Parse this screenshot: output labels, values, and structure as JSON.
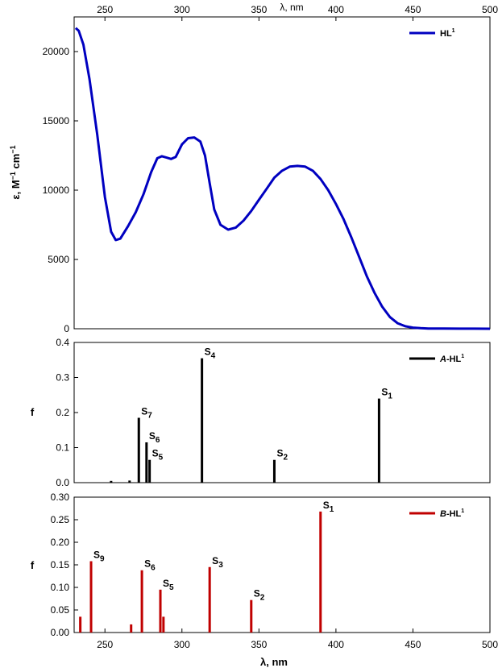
{
  "chart_data": [
    {
      "type": "line",
      "xlabel": "λ, nm",
      "ylabel_parts": [
        "ε, M",
        "−1",
        " cm",
        "−1"
      ],
      "x_range": [
        230,
        500
      ],
      "ylim": [
        0,
        22500
      ],
      "yticks": [
        0,
        5000,
        10000,
        15000,
        20000
      ],
      "xticks": [
        250,
        300,
        350,
        400,
        450,
        500
      ],
      "legend": {
        "base": "HL",
        "sup": "1",
        "position": "top-right"
      },
      "series": [
        {
          "name": "HL¹",
          "color": "#0000c0",
          "x": [
            231,
            233,
            236,
            240,
            245,
            250,
            254,
            257,
            260,
            265,
            270,
            275,
            280,
            284,
            287,
            290,
            293,
            296,
            300,
            304,
            308,
            312,
            315,
            318,
            321,
            325,
            330,
            335,
            340,
            345,
            350,
            355,
            360,
            365,
            370,
            375,
            380,
            385,
            390,
            395,
            400,
            405,
            410,
            415,
            420,
            425,
            430,
            435,
            440,
            445,
            450,
            455,
            460,
            470,
            480,
            490,
            500
          ],
          "y": [
            21700,
            21500,
            20500,
            18000,
            14000,
            9500,
            7000,
            6400,
            6500,
            7400,
            8400,
            9700,
            11300,
            12300,
            12450,
            12350,
            12250,
            12400,
            13300,
            13750,
            13800,
            13500,
            12500,
            10500,
            8600,
            7500,
            7150,
            7300,
            7800,
            8500,
            9300,
            10100,
            10900,
            11400,
            11700,
            11750,
            11700,
            11400,
            10800,
            10000,
            9000,
            7900,
            6600,
            5200,
            3800,
            2600,
            1600,
            850,
            400,
            180,
            80,
            40,
            20,
            10,
            5,
            3,
            2
          ]
        }
      ]
    },
    {
      "type": "bar",
      "ylabel": "f",
      "x_range": [
        230,
        500
      ],
      "ylim": [
        0,
        0.4
      ],
      "yticks": [
        "0.0",
        "0.1",
        "0.2",
        "0.3",
        "0.4"
      ],
      "legend": {
        "italic": "A",
        "base": "-HL",
        "sup": "1",
        "position": "top-right"
      },
      "color": "#000000",
      "bars": [
        {
          "x": 254,
          "f": 0.005
        },
        {
          "x": 266,
          "f": 0.006
        },
        {
          "x": 272,
          "f": 0.185,
          "label": "S",
          "sub": "7"
        },
        {
          "x": 277,
          "f": 0.115,
          "label": "S",
          "sub": "6"
        },
        {
          "x": 279,
          "f": 0.065,
          "label": "S",
          "sub": "5"
        },
        {
          "x": 313,
          "f": 0.355,
          "label": "S",
          "sub": "4"
        },
        {
          "x": 360,
          "f": 0.065,
          "label": "S",
          "sub": "2"
        },
        {
          "x": 428,
          "f": 0.24,
          "label": "S",
          "sub": "1"
        }
      ]
    },
    {
      "type": "bar",
      "ylabel": "f",
      "xlabel": "λ, nm",
      "x_range": [
        230,
        500
      ],
      "ylim": [
        0,
        0.3
      ],
      "yticks": [
        "0.00",
        "0.05",
        "0.10",
        "0.15",
        "0.20",
        "0.25",
        "0.30"
      ],
      "xticks": [
        250,
        300,
        350,
        400,
        450,
        500
      ],
      "legend": {
        "italic": "B",
        "base": "-HL",
        "sup": "1",
        "position": "top-right"
      },
      "color": "#c00000",
      "bars": [
        {
          "x": 234,
          "f": 0.035
        },
        {
          "x": 241,
          "f": 0.158,
          "label": "S",
          "sub": "9"
        },
        {
          "x": 267,
          "f": 0.018
        },
        {
          "x": 274,
          "f": 0.138,
          "label": "S",
          "sub": "6"
        },
        {
          "x": 286,
          "f": 0.095,
          "label": "S",
          "sub": "5"
        },
        {
          "x": 288,
          "f": 0.035
        },
        {
          "x": 318,
          "f": 0.145,
          "label": "S",
          "sub": "3"
        },
        {
          "x": 345,
          "f": 0.072,
          "label": "S",
          "sub": "2"
        },
        {
          "x": 390,
          "f": 0.268,
          "label": "S",
          "sub": "1"
        }
      ]
    }
  ]
}
